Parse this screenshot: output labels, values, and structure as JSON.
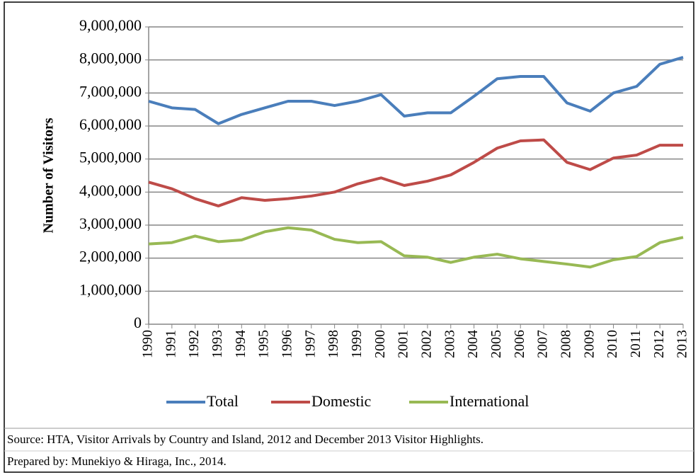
{
  "chart_data": {
    "type": "line",
    "y_label": "Number  of Visitors",
    "categories": [
      "1990",
      "1991",
      "1992",
      "1993",
      "1994",
      "1995",
      "1996",
      "1997",
      "1998",
      "1999",
      "2000",
      "2001",
      "2002",
      "2003",
      "2004",
      "2005",
      "2006",
      "2007",
      "2008",
      "2009",
      "2010",
      "2011",
      "2012",
      "2013"
    ],
    "series": [
      {
        "name": "Total",
        "color": "#4a7ebb",
        "values": [
          6750000,
          6550000,
          6500000,
          6070000,
          6350000,
          6550000,
          6750000,
          6750000,
          6620000,
          6750000,
          6950000,
          6300000,
          6400000,
          6400000,
          6900000,
          7430000,
          7500000,
          7500000,
          6700000,
          6450000,
          7000000,
          7200000,
          7870000,
          8080000
        ]
      },
      {
        "name": "Domestic",
        "color": "#be4b48",
        "values": [
          4300000,
          4100000,
          3800000,
          3580000,
          3830000,
          3750000,
          3800000,
          3880000,
          4000000,
          4250000,
          4430000,
          4200000,
          4330000,
          4520000,
          4900000,
          5330000,
          5550000,
          5580000,
          4900000,
          4680000,
          5030000,
          5120000,
          5420000,
          5420000
        ]
      },
      {
        "name": "International",
        "color": "#98b954",
        "values": [
          2430000,
          2470000,
          2670000,
          2500000,
          2550000,
          2800000,
          2920000,
          2850000,
          2570000,
          2470000,
          2500000,
          2070000,
          2030000,
          1870000,
          2030000,
          2120000,
          1980000,
          1900000,
          1820000,
          1730000,
          1950000,
          2050000,
          2470000,
          2630000
        ]
      }
    ],
    "ylim": [
      0,
      9000000
    ],
    "yticks": [
      0,
      {
        "value": 1000000,
        "label": "1,000,000"
      },
      {
        "value": 2000000,
        "label": "2,000,000"
      },
      {
        "value": 3000000,
        "label": "3,000,000"
      },
      {
        "value": 4000000,
        "label": "4,000,000"
      },
      {
        "value": 5000000,
        "label": "5,000,000"
      },
      {
        "value": 6000000,
        "label": "6,000,000"
      },
      {
        "value": 7000000,
        "label": "7,000,000"
      },
      {
        "value": 8000000,
        "label": "8,000,000"
      },
      {
        "value": 9000000,
        "label": "9,000,000"
      }
    ],
    "grid": true
  },
  "notes": [
    "Source: HTA, Visitor Arrivals by Country and Island, 2012 and December 2013 Visitor Highlights.",
    "Prepared by: Munekiyo & Hiraga, Inc., 2014."
  ]
}
